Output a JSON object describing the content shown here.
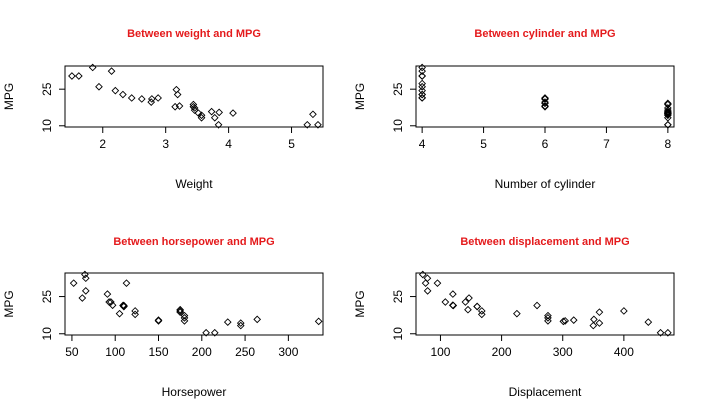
{
  "chart_data": [
    {
      "type": "scatter",
      "title": "Between weight and MPG",
      "xlabel": "Weight",
      "ylabel": "MPG",
      "xlim": [
        1.4,
        5.5
      ],
      "ylim": [
        9.5,
        34.5
      ],
      "xticks": [
        2,
        3,
        4,
        5
      ],
      "yticks": [
        10,
        25
      ],
      "x": [
        1.51,
        1.62,
        1.84,
        1.94,
        2.14,
        2.2,
        2.32,
        2.46,
        2.62,
        2.77,
        2.78,
        2.88,
        3.15,
        3.17,
        3.19,
        3.22,
        3.44,
        3.44,
        3.46,
        3.46,
        3.52,
        3.57,
        3.57,
        3.73,
        3.78,
        3.84,
        3.85,
        4.07,
        5.25,
        5.34,
        5.42
      ],
      "y": [
        30.4,
        30.4,
        33.9,
        26.0,
        32.4,
        24.4,
        22.8,
        21.4,
        21.0,
        19.7,
        21.0,
        21.4,
        17.8,
        24.8,
        22.8,
        18.1,
        18.7,
        17.8,
        17.3,
        16.4,
        15.2,
        13.3,
        14.3,
        15.8,
        13.3,
        10.4,
        15.5,
        15.2,
        10.4,
        14.7,
        10.4
      ],
      "grid": false
    },
    {
      "type": "scatter",
      "title": "Between cylinder and MPG",
      "xlabel": "Number of cylinder",
      "ylabel": "MPG",
      "xlim": [
        3.9,
        8.1
      ],
      "ylim": [
        9.5,
        34.5
      ],
      "xticks": [
        4,
        5,
        6,
        7,
        8
      ],
      "yticks": [
        10,
        25
      ],
      "x": [
        4,
        4,
        4,
        4,
        4,
        4,
        4,
        4,
        4,
        4,
        4,
        6,
        6,
        6,
        6,
        6,
        6,
        6,
        8,
        8,
        8,
        8,
        8,
        8,
        8,
        8,
        8,
        8,
        8,
        8,
        8,
        8
      ],
      "y": [
        22.8,
        24.4,
        22.8,
        32.4,
        30.4,
        33.9,
        21.5,
        27.3,
        26.0,
        30.4,
        21.4,
        21.0,
        21.0,
        21.4,
        18.1,
        19.2,
        17.8,
        19.7,
        18.7,
        14.3,
        16.4,
        17.3,
        15.2,
        10.4,
        10.4,
        14.7,
        15.5,
        15.2,
        13.3,
        19.2,
        15.8,
        15.0
      ],
      "grid": false
    },
    {
      "type": "scatter",
      "title": "Between horsepower and MPG",
      "xlabel": "Horsepower",
      "ylabel": "MPG",
      "xlim": [
        42,
        340
      ],
      "ylim": [
        9.5,
        34.5
      ],
      "xticks": [
        50,
        100,
        150,
        200,
        250,
        300
      ],
      "yticks": [
        10,
        25
      ],
      "x": [
        110,
        110,
        93,
        110,
        175,
        105,
        245,
        62,
        95,
        123,
        123,
        180,
        180,
        180,
        205,
        215,
        230,
        66,
        52,
        65,
        97,
        150,
        150,
        245,
        175,
        66,
        91,
        113,
        264,
        175,
        335,
        109
      ],
      "y": [
        21.0,
        21.0,
        22.8,
        21.4,
        18.7,
        18.1,
        14.3,
        24.4,
        22.8,
        19.2,
        17.8,
        16.4,
        17.3,
        15.2,
        10.4,
        10.4,
        14.7,
        32.4,
        30.4,
        33.9,
        21.5,
        15.5,
        15.2,
        13.3,
        19.2,
        27.3,
        26.0,
        30.4,
        15.8,
        19.7,
        15.0,
        21.4
      ],
      "grid": false
    },
    {
      "type": "scatter",
      "title": "Between displacement and MPG",
      "xlabel": "Displacement",
      "ylabel": "MPG",
      "xlim": [
        60,
        482
      ],
      "ylim": [
        9.5,
        34.5
      ],
      "xticks": [
        100,
        200,
        300,
        400
      ],
      "yticks": [
        10,
        25
      ],
      "x": [
        160,
        160,
        108,
        258,
        360,
        225,
        360,
        146.7,
        140.8,
        167.6,
        167.6,
        275.8,
        275.8,
        275.8,
        472,
        460,
        440,
        78.7,
        75.7,
        71.1,
        120.1,
        318,
        304,
        350,
        400,
        79,
        120.3,
        95.1,
        351,
        145,
        301,
        121
      ],
      "y": [
        21.0,
        21.0,
        22.8,
        21.4,
        18.7,
        18.1,
        14.3,
        24.4,
        22.8,
        19.2,
        17.8,
        16.4,
        17.3,
        15.2,
        10.4,
        10.4,
        14.7,
        32.4,
        30.4,
        33.9,
        21.5,
        15.5,
        15.2,
        13.3,
        19.2,
        27.3,
        26.0,
        30.4,
        15.8,
        19.7,
        15.0,
        21.4
      ],
      "grid": false
    }
  ],
  "colors": {
    "title": "#e41a1c",
    "points": "#000000"
  }
}
